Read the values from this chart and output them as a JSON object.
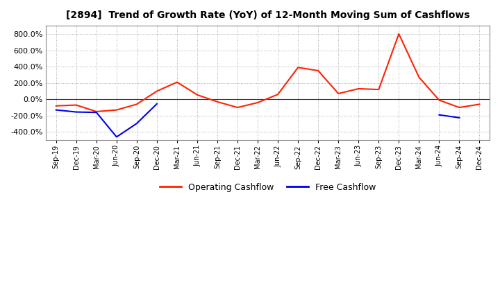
{
  "title": "[2894]  Trend of Growth Rate (YoY) of 12-Month Moving Sum of Cashflows",
  "x_labels": [
    "Sep-19",
    "Dec-19",
    "Mar-20",
    "Jun-20",
    "Sep-20",
    "Dec-20",
    "Mar-21",
    "Jun-21",
    "Sep-21",
    "Dec-21",
    "Mar-22",
    "Jun-22",
    "Sep-22",
    "Dec-22",
    "Mar-23",
    "Jun-23",
    "Sep-23",
    "Dec-23",
    "Mar-24",
    "Jun-24",
    "Sep-24",
    "Dec-24"
  ],
  "operating_cashflow": [
    -80,
    -70,
    -150,
    -130,
    -60,
    100,
    210,
    55,
    -30,
    -100,
    -40,
    60,
    390,
    350,
    70,
    130,
    120,
    800,
    270,
    -10,
    -100,
    -60
  ],
  "free_cashflow": [
    -130,
    -155,
    -160,
    -460,
    -295,
    -55,
    null,
    null,
    null,
    null,
    null,
    null,
    null,
    null,
    null,
    null,
    null,
    null,
    null,
    -190,
    -225,
    null
  ],
  "ylim": [
    -500,
    900
  ],
  "yticks": [
    -400,
    -200,
    0,
    200,
    400,
    600,
    800
  ],
  "operating_color": "#ff2200",
  "free_color": "#0000ee",
  "background_color": "#ffffff",
  "plot_bg_color": "#ffffff",
  "grid_color": "#999999",
  "legend_labels": [
    "Operating Cashflow",
    "Free Cashflow"
  ]
}
